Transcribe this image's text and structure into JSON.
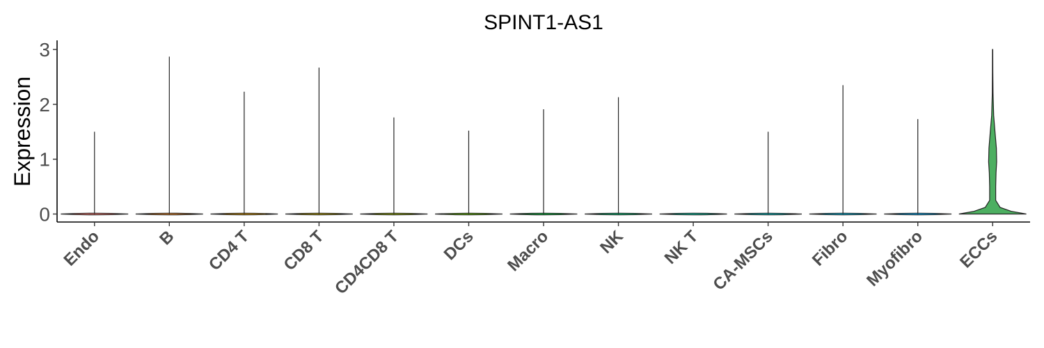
{
  "chart_data": {
    "type": "violin",
    "title": "SPINT1-AS1",
    "xlabel": "",
    "ylabel": "Expression",
    "ylim": [
      -0.15,
      3.15
    ],
    "yticks": [
      0,
      1,
      2,
      3
    ],
    "grid": false,
    "legend": "none",
    "categories": [
      "Endo",
      "B",
      "CD4 T",
      "CD8 T",
      "CD4CD8 T",
      "DCs",
      "Macro",
      "NK",
      "NK T",
      "CA-MSCs",
      "Fibro",
      "Myofibro",
      "ECCs"
    ],
    "max_values": [
      1.5,
      2.87,
      2.23,
      2.67,
      1.76,
      1.52,
      1.91,
      2.13,
      0.0,
      1.5,
      2.35,
      1.73,
      3.0
    ],
    "fill_colors": [
      "#f8766d",
      "#e88526",
      "#d39200",
      "#b79f00",
      "#93aa00",
      "#5eb300",
      "#00ba38",
      "#00bf74",
      "#00c19f",
      "#00bfc4",
      "#00b9e3",
      "#00adfa",
      "#4daf61"
    ],
    "highlighted": {
      "category": "ECCs",
      "color": "#4daf61",
      "density": [
        [
          0.0,
          1.0
        ],
        [
          0.05,
          0.55
        ],
        [
          0.12,
          0.22
        ],
        [
          0.25,
          0.09
        ],
        [
          0.5,
          0.09
        ],
        [
          0.75,
          0.1
        ],
        [
          0.95,
          0.12
        ],
        [
          1.2,
          0.11
        ],
        [
          1.5,
          0.07
        ],
        [
          1.8,
          0.03
        ],
        [
          2.2,
          0.012
        ],
        [
          2.6,
          0.006
        ],
        [
          3.0,
          0.004
        ]
      ]
    }
  }
}
